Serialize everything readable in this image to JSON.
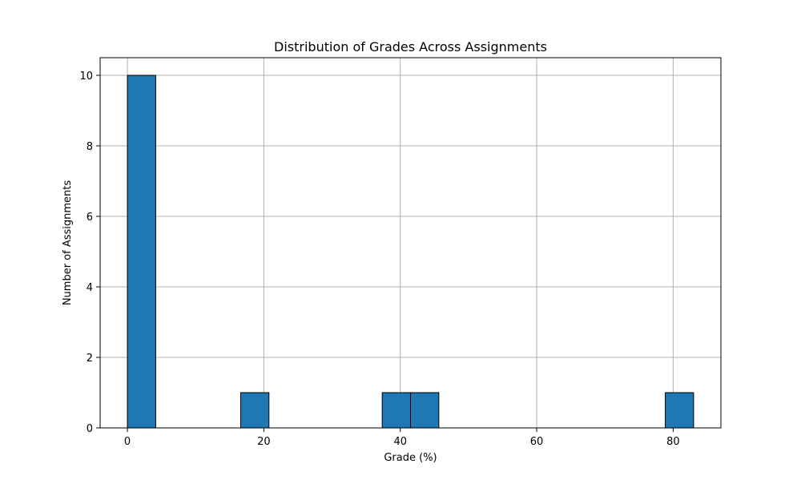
{
  "chart_data": {
    "type": "bar",
    "title": "Distribution of Grades Across Assignments",
    "xlabel": "Grade (%)",
    "ylabel": "Number of Assignments",
    "xlim": [
      -4,
      87
    ],
    "ylim": [
      0,
      10.5
    ],
    "x_ticks": [
      0,
      20,
      40,
      60,
      80
    ],
    "y_ticks": [
      0,
      2,
      4,
      6,
      8,
      10
    ],
    "grid": true,
    "bins": [
      {
        "start": 0,
        "end": 4.15,
        "count": 10
      },
      {
        "start": 16.6,
        "end": 20.75,
        "count": 1
      },
      {
        "start": 37.35,
        "end": 41.5,
        "count": 1
      },
      {
        "start": 41.5,
        "end": 45.65,
        "count": 1
      },
      {
        "start": 78.85,
        "end": 83.0,
        "count": 1
      }
    ],
    "colors": {
      "bar_fill": "#1f77b4",
      "bar_edge": "#000000",
      "grid": "#b0b0b0",
      "axis": "#000000"
    }
  }
}
